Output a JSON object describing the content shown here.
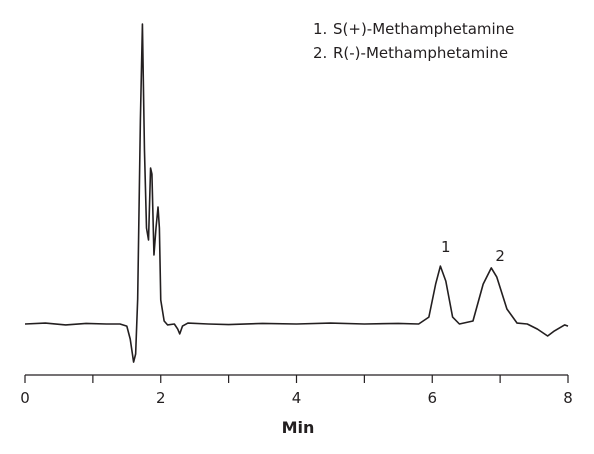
{
  "chart_data": {
    "type": "line",
    "xlabel": "Min",
    "legend": [
      {
        "number": "1.",
        "label": "S(+)-Methamphetamine"
      },
      {
        "number": "2.",
        "label": "R(-)-Methamphetamine"
      }
    ],
    "annotations": [
      {
        "text": "1",
        "x": 6.2,
        "y": 24
      },
      {
        "text": "2",
        "x": 7.0,
        "y": 21
      }
    ],
    "x": [
      0,
      0.3,
      0.6,
      0.9,
      1.2,
      1.4,
      1.5,
      1.55,
      1.6,
      1.63,
      1.66,
      1.7,
      1.73,
      1.76,
      1.79,
      1.82,
      1.85,
      1.87,
      1.9,
      1.93,
      1.96,
      1.98,
      2.0,
      2.05,
      2.1,
      2.2,
      2.25,
      2.28,
      2.32,
      2.4,
      2.7,
      3.0,
      3.5,
      4.0,
      4.5,
      5.0,
      5.5,
      5.8,
      5.95,
      6.05,
      6.12,
      6.2,
      6.3,
      6.4,
      6.6,
      6.75,
      6.87,
      6.95,
      7.1,
      7.25,
      7.4,
      7.55,
      7.7,
      7.8,
      7.95,
      8.0
    ],
    "values": [
      0,
      0.3,
      -0.3,
      0.2,
      0,
      0,
      -0.7,
      -5,
      -12.7,
      -10,
      8.3,
      68,
      100,
      58,
      32,
      28,
      52,
      50,
      23,
      32,
      39,
      32,
      8,
      1,
      -0.3,
      0,
      -1.7,
      -3.3,
      -0.7,
      0.3,
      0,
      -0.2,
      0.2,
      0,
      0.3,
      0,
      0.2,
      0,
      2.3,
      13.3,
      19.3,
      14.3,
      2.3,
      0,
      1,
      13.3,
      18.7,
      15.7,
      5,
      0.3,
      0,
      -1.7,
      -4,
      -2.3,
      -0.3,
      -0.7
    ],
    "color": "#231f20",
    "xlim": [
      0,
      8
    ],
    "xticks": [
      0,
      2,
      4,
      6,
      8
    ],
    "xminor_ticks": [
      1,
      3,
      5,
      7
    ],
    "ylim": [
      -17,
      103
    ]
  }
}
